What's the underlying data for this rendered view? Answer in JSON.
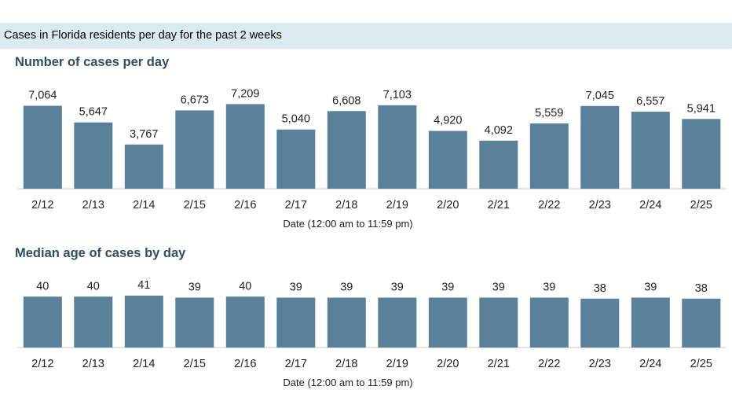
{
  "header": {
    "title": "Cases in Florida residents per day for the past 2 weeks"
  },
  "chart_data": [
    {
      "type": "bar",
      "title": "Number of cases per day",
      "xlabel": "Date (12:00 am to 11:59 pm)",
      "ylabel": "",
      "ylim": [
        0,
        7300
      ],
      "categories": [
        "2/12",
        "2/13",
        "2/14",
        "2/15",
        "2/16",
        "2/17",
        "2/18",
        "2/19",
        "2/20",
        "2/21",
        "2/22",
        "2/23",
        "2/24",
        "2/25"
      ],
      "values": [
        7064,
        5647,
        3767,
        6673,
        7209,
        5040,
        6608,
        7103,
        4920,
        4092,
        5559,
        7045,
        6557,
        5941
      ],
      "labels": [
        "7,064",
        "5,647",
        "3,767",
        "6,673",
        "7,209",
        "5,040",
        "6,608",
        "7,103",
        "4,920",
        "4,092",
        "5,559",
        "7,045",
        "6,557",
        "5,941"
      ],
      "color": "#5a8199",
      "grid": false
    },
    {
      "type": "bar",
      "title": "Median age of cases by day",
      "xlabel": "Date (12:00 am to 11:59 pm)",
      "ylabel": "",
      "ylim": [
        0,
        41
      ],
      "categories": [
        "2/12",
        "2/13",
        "2/14",
        "2/15",
        "2/16",
        "2/17",
        "2/18",
        "2/19",
        "2/20",
        "2/21",
        "2/22",
        "2/23",
        "2/24",
        "2/25"
      ],
      "values": [
        40,
        40,
        41,
        39,
        40,
        39,
        39,
        39,
        39,
        39,
        39,
        38,
        39,
        38
      ],
      "labels": [
        "40",
        "40",
        "41",
        "39",
        "40",
        "39",
        "39",
        "39",
        "39",
        "39",
        "39",
        "38",
        "39",
        "38"
      ],
      "color": "#5a8199",
      "grid": false
    }
  ]
}
